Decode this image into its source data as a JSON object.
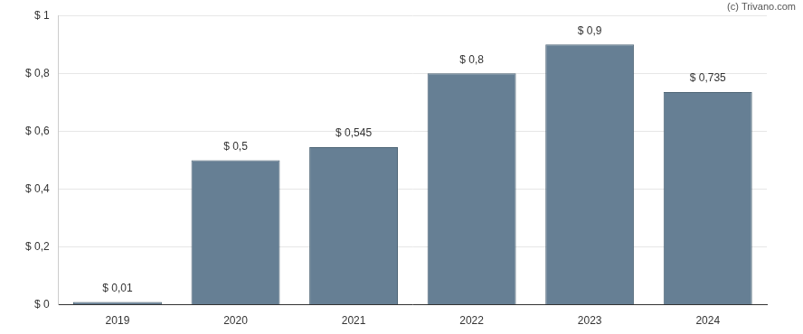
{
  "chart_data": {
    "type": "bar",
    "annotation": "(c) Trivano.com",
    "categories": [
      "2019",
      "2020",
      "2021",
      "2022",
      "2023",
      "2024"
    ],
    "values": [
      0.01,
      0.5,
      0.545,
      0.8,
      0.9,
      0.735
    ],
    "value_labels": [
      "$ 0,01",
      "$ 0,5",
      "$ 0,545",
      "$ 0,8",
      "$ 0,9",
      "$ 0,735"
    ],
    "data_labels": true,
    "color": "#667f94",
    "ylim": [
      0,
      1
    ],
    "yticks": [
      {
        "value": 0,
        "label": "$ 0"
      },
      {
        "value": 0.2,
        "label": "$ 0,2"
      },
      {
        "value": 0.4,
        "label": "$ 0,4"
      },
      {
        "value": 0.6,
        "label": "$ 0,6"
      },
      {
        "value": 0.8,
        "label": "$ 0,8"
      },
      {
        "value": 1,
        "label": "$ 1"
      }
    ],
    "grid": true
  }
}
